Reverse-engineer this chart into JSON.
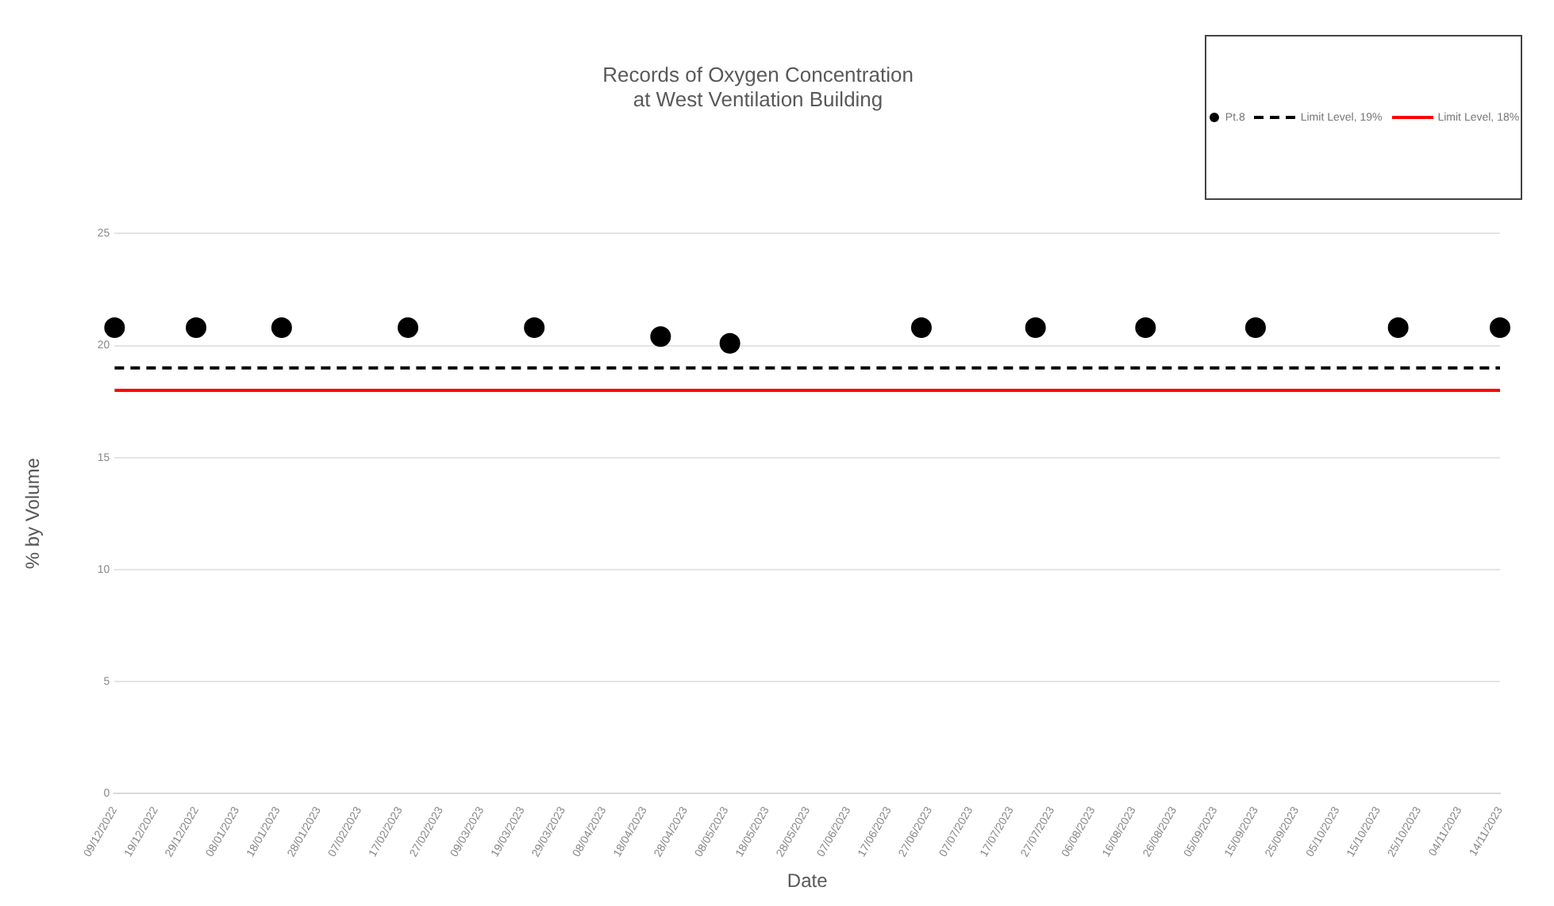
{
  "chart_data": {
    "type": "scatter",
    "title": "Records of Oxygen Concentration\nat West Ventilation Building",
    "xlabel": "Date",
    "ylabel": "% by Volume",
    "series": [
      {
        "name": "Pt.8",
        "type": "scatter",
        "color": "#000000",
        "marker": "circle",
        "x": [
          "2022-12-09",
          "2022-12-29",
          "2023-01-19",
          "2023-02-19",
          "2023-03-22",
          "2023-04-22",
          "2023-05-09",
          "2023-06-25",
          "2023-07-23",
          "2023-08-19",
          "2023-09-15",
          "2023-10-20",
          "2023-11-14"
        ],
        "values": [
          20.8,
          20.8,
          20.8,
          20.8,
          20.8,
          20.4,
          20.1,
          20.8,
          20.8,
          20.8,
          20.8,
          20.8,
          20.8
        ]
      },
      {
        "name": "Limit Level, 19%",
        "type": "line",
        "color": "#000000",
        "line_style": "dashed",
        "marker": "none",
        "x": [
          "2022-12-09",
          "2023-11-14"
        ],
        "values": [
          19,
          19
        ]
      },
      {
        "name": "Limit Level, 18%",
        "type": "line",
        "color": "#ff0000",
        "line_style": "solid",
        "marker": "none",
        "x": [
          "2022-12-09",
          "2023-11-14"
        ],
        "values": [
          18,
          18
        ]
      }
    ],
    "xlim": [
      "2022-12-09",
      "2023-11-14"
    ],
    "xticks": [
      {
        "value": "2022-12-09",
        "label": "09/12/2022"
      },
      {
        "value": "2022-12-19",
        "label": "19/12/2022"
      },
      {
        "value": "2022-12-29",
        "label": "29/12/2022"
      },
      {
        "value": "2023-01-08",
        "label": "08/01/2023"
      },
      {
        "value": "2023-01-18",
        "label": "18/01/2023"
      },
      {
        "value": "2023-01-28",
        "label": "28/01/2023"
      },
      {
        "value": "2023-02-07",
        "label": "07/02/2023"
      },
      {
        "value": "2023-02-17",
        "label": "17/02/2023"
      },
      {
        "value": "2023-02-27",
        "label": "27/02/2023"
      },
      {
        "value": "2023-03-09",
        "label": "09/03/2023"
      },
      {
        "value": "2023-03-19",
        "label": "19/03/2023"
      },
      {
        "value": "2023-03-29",
        "label": "29/03/2023"
      },
      {
        "value": "2023-04-08",
        "label": "08/04/2023"
      },
      {
        "value": "2023-04-18",
        "label": "18/04/2023"
      },
      {
        "value": "2023-04-28",
        "label": "28/04/2023"
      },
      {
        "value": "2023-05-08",
        "label": "08/05/2023"
      },
      {
        "value": "2023-05-18",
        "label": "18/05/2023"
      },
      {
        "value": "2023-05-28",
        "label": "28/05/2023"
      },
      {
        "value": "2023-06-07",
        "label": "07/06/2023"
      },
      {
        "value": "2023-06-17",
        "label": "17/06/2023"
      },
      {
        "value": "2023-06-27",
        "label": "27/06/2023"
      },
      {
        "value": "2023-07-07",
        "label": "07/07/2023"
      },
      {
        "value": "2023-07-17",
        "label": "17/07/2023"
      },
      {
        "value": "2023-07-27",
        "label": "27/07/2023"
      },
      {
        "value": "2023-08-06",
        "label": "06/08/2023"
      },
      {
        "value": "2023-08-16",
        "label": "16/08/2023"
      },
      {
        "value": "2023-08-26",
        "label": "26/08/2023"
      },
      {
        "value": "2023-09-05",
        "label": "05/09/2023"
      },
      {
        "value": "2023-09-15",
        "label": "15/09/2023"
      },
      {
        "value": "2023-09-25",
        "label": "25/09/2023"
      },
      {
        "value": "2023-10-05",
        "label": "05/10/2023"
      },
      {
        "value": "2023-10-15",
        "label": "15/10/2023"
      },
      {
        "value": "2023-10-25",
        "label": "25/10/2023"
      },
      {
        "value": "2023-11-04",
        "label": "04/11/2023"
      },
      {
        "value": "2023-11-14",
        "label": "14/11/2023"
      }
    ],
    "ylim": [
      0,
      25
    ],
    "yticks": [
      0,
      5,
      10,
      15,
      20,
      25
    ],
    "grid": "y",
    "legend": "top right"
  }
}
